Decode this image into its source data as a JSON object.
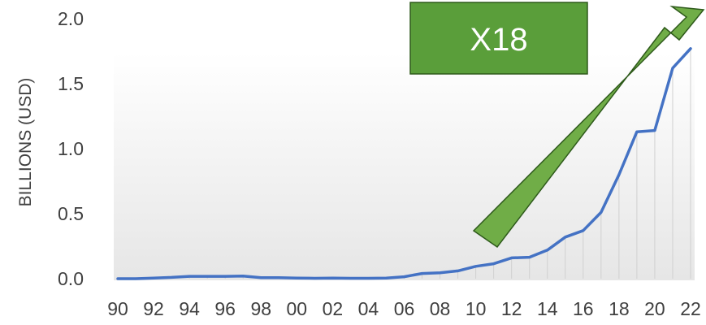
{
  "chart_data": {
    "type": "area",
    "ylabel": "BILLIONS (USD)",
    "ylim": [
      0,
      2.0
    ],
    "yticks": [
      "0.0",
      "0.5",
      "1.0",
      "1.5",
      "2.0"
    ],
    "ytick_values": [
      0,
      0.5,
      1.0,
      1.5,
      2.0
    ],
    "xtick_labels": [
      "90",
      "92",
      "94",
      "96",
      "98",
      "00",
      "02",
      "04",
      "06",
      "08",
      "10",
      "12",
      "14",
      "16",
      "18",
      "20",
      "22"
    ],
    "x": [
      1990,
      1991,
      1992,
      1993,
      1994,
      1995,
      1996,
      1997,
      1998,
      1999,
      2000,
      2001,
      2002,
      2003,
      2004,
      2005,
      2006,
      2007,
      2008,
      2009,
      2010,
      2011,
      2012,
      2013,
      2014,
      2015,
      2016,
      2017,
      2018,
      2019,
      2020,
      2021,
      2022
    ],
    "series": [
      {
        "values": [
          0.0,
          0.0,
          0.005,
          0.01,
          0.018,
          0.018,
          0.018,
          0.02,
          0.008,
          0.008,
          0.005,
          0.003,
          0.005,
          0.003,
          0.003,
          0.005,
          0.015,
          0.04,
          0.045,
          0.06,
          0.095,
          0.115,
          0.16,
          0.165,
          0.22,
          0.32,
          0.37,
          0.51,
          0.8,
          1.13,
          1.14,
          1.62,
          1.77
        ],
        "color": "#4472C4"
      }
    ],
    "annotation": {
      "text": "X18",
      "arrow_color": "#70AD47",
      "arrow_border": "#2E5A1B",
      "box_color": "#5A9E3A"
    },
    "grid": false,
    "area_gradient": true
  }
}
